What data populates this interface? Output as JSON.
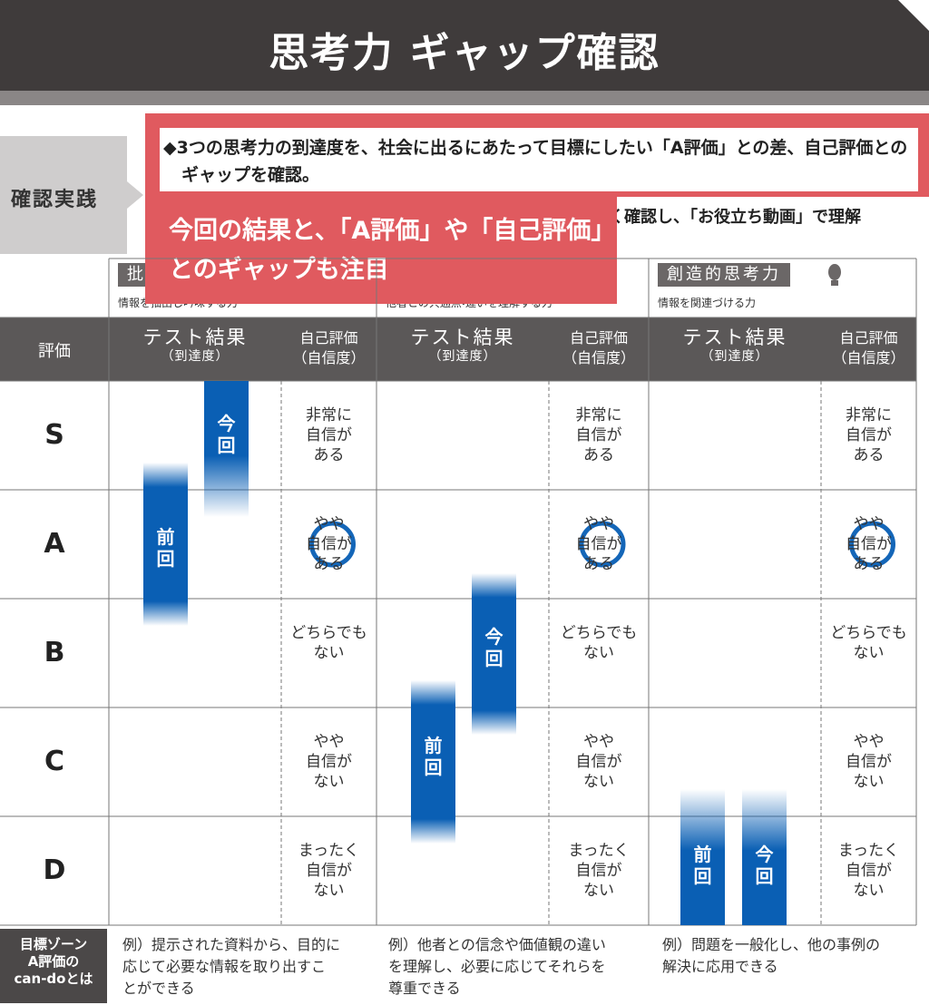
{
  "header": {
    "title": "思考力 ギャップ確認"
  },
  "practice": {
    "label": "確認実践",
    "behind_text": "く確認し、「お役立ち動画」で理解"
  },
  "callout": {
    "text": "◆3つの思考力の到達度を、社会に出るにあたって目標にしたい「A評価」との差、自己評価とのギャップを確認。"
  },
  "note": {
    "text": "今回の結果と、「A評価」や「自己評価」とのギャップも注目"
  },
  "columns": [
    {
      "title": "批",
      "subtitle": "情報を抽出し吟味する力"
    },
    {
      "title": "",
      "subtitle": "他者との共通点・違いを理解する力"
    },
    {
      "title": "創造的思考力",
      "subtitle": "情報を関連づける力"
    }
  ],
  "table": {
    "grade_header": "評価",
    "test_header": "テスト結果",
    "test_sub": "（到達度）",
    "self_header": "自己評価",
    "self_sub": "（自信度）",
    "grades": [
      "S",
      "A",
      "B",
      "C",
      "D"
    ],
    "self_labels": [
      "非常に\n自信が\nある",
      "やや\n自信が\nある",
      "どちらでも\nない",
      "やや\n自信が\nない",
      "まったく\n自信が\nない"
    ],
    "previous": "前\n回",
    "current": "今\n回"
  },
  "footer": {
    "zone": "目標ゾーン\nA評価の\ncan-doとは",
    "examples": [
      "例）提示された資料から、目的に\n応じて必要な情報を取り出すこ\nとができる",
      "例）他者との信念や価値観の違い\nを理解し、必要に応じてそれらを\n尊重できる",
      "例）問題を一般化し、他の事例の\n解決に応用できる"
    ]
  }
}
